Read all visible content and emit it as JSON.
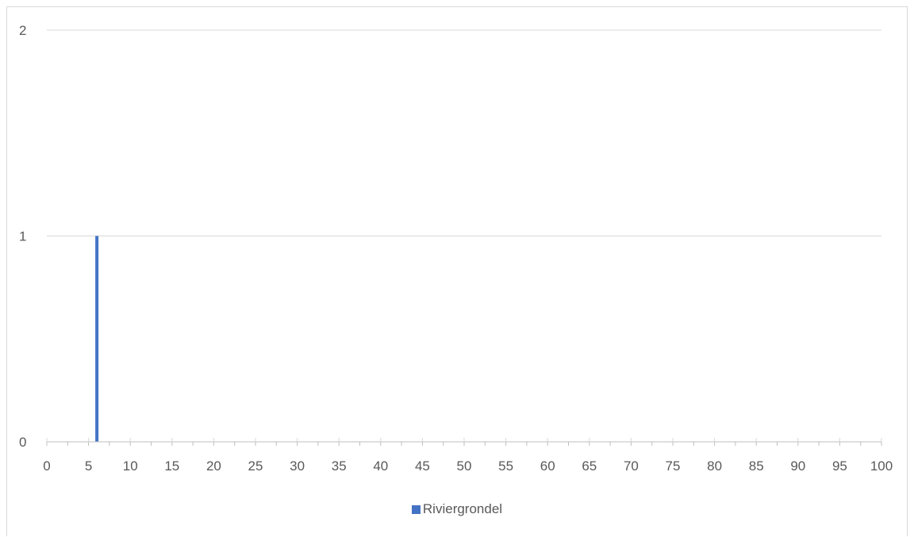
{
  "chart_data": {
    "type": "bar",
    "x_ticks": [
      "0",
      "5",
      "10",
      "15",
      "20",
      "25",
      "30",
      "35",
      "40",
      "45",
      "50",
      "55",
      "60",
      "65",
      "70",
      "75",
      "80",
      "85",
      "90",
      "95",
      "100"
    ],
    "y_ticks": [
      "0",
      "1",
      "2"
    ],
    "xlim": [
      0,
      100
    ],
    "ylim": [
      0,
      2
    ],
    "grid": true,
    "legend_position": "bottom",
    "series": [
      {
        "name": "Riviergrondel",
        "color": "#4472c4",
        "points": [
          {
            "x": 6,
            "y": 1
          }
        ]
      }
    ]
  }
}
